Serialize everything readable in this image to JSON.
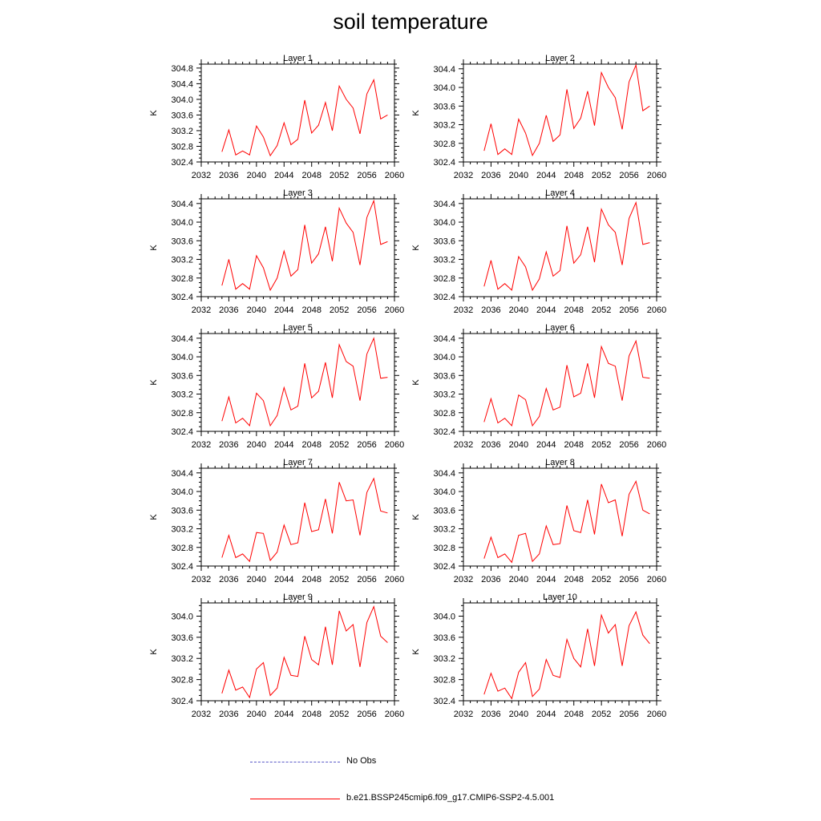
{
  "title": "soil temperature",
  "colors": {
    "model_line": "#ff0000",
    "obs_line": "#5a5ac8",
    "axis": "#000000"
  },
  "legend": [
    {
      "label": "No Obs",
      "color": "#5a5ac8",
      "style": "dashed"
    },
    {
      "label": "b.e21.BSSP245cmip6.f09_g17.CMIP6-SSP2-4.5.001",
      "color": "#ff0000",
      "style": "solid"
    }
  ],
  "chart_data": [
    {
      "type": "line",
      "title": "Layer 1",
      "ylabel": "K",
      "xlim": [
        2032,
        2060
      ],
      "ylim": [
        302.4,
        304.9
      ],
      "x_ticks": [
        2032,
        2036,
        2040,
        2044,
        2048,
        2052,
        2056,
        2060
      ],
      "y_ticks": [
        "302.4",
        "302.8",
        "303.2",
        "303.6",
        "304.0",
        "304.4",
        "304.8"
      ],
      "x": [
        2035,
        2036,
        2037,
        2038,
        2039,
        2040,
        2041,
        2042,
        2043,
        2044,
        2045,
        2046,
        2047,
        2048,
        2049,
        2050,
        2051,
        2052,
        2053,
        2054,
        2055,
        2056,
        2057,
        2058,
        2059
      ],
      "series": [
        {
          "name": "b.e21.BSSP245cmip6.f09_g17.CMIP6-SSP2-4.5.001",
          "values": [
            302.66,
            303.22,
            302.58,
            302.68,
            302.58,
            303.32,
            303.04,
            302.56,
            302.82,
            303.4,
            302.84,
            302.98,
            303.98,
            303.14,
            303.34,
            303.92,
            303.2,
            304.34,
            304.0,
            303.78,
            303.12,
            304.14,
            304.5,
            303.5,
            303.6
          ]
        }
      ]
    },
    {
      "type": "line",
      "title": "Layer 2",
      "ylabel": "K",
      "xlim": [
        2032,
        2060
      ],
      "ylim": [
        302.4,
        304.5
      ],
      "x_ticks": [
        2032,
        2036,
        2040,
        2044,
        2048,
        2052,
        2056,
        2060
      ],
      "y_ticks": [
        "302.4",
        "302.8",
        "303.2",
        "303.6",
        "304.0",
        "304.4"
      ],
      "x": [
        2035,
        2036,
        2037,
        2038,
        2039,
        2040,
        2041,
        2042,
        2043,
        2044,
        2045,
        2046,
        2047,
        2048,
        2049,
        2050,
        2051,
        2052,
        2053,
        2054,
        2055,
        2056,
        2057,
        2058,
        2059
      ],
      "series": [
        {
          "name": "b.e21.BSSP245cmip6.f09_g17.CMIP6-SSP2-4.5.001",
          "values": [
            302.64,
            303.22,
            302.56,
            302.68,
            302.56,
            303.32,
            303.02,
            302.54,
            302.8,
            303.4,
            302.84,
            302.98,
            303.96,
            303.12,
            303.34,
            303.92,
            303.18,
            304.32,
            304.0,
            303.78,
            303.1,
            304.12,
            304.48,
            303.5,
            303.6
          ]
        }
      ]
    },
    {
      "type": "line",
      "title": "Layer 3",
      "ylabel": "K",
      "xlim": [
        2032,
        2060
      ],
      "ylim": [
        302.4,
        304.5
      ],
      "x_ticks": [
        2032,
        2036,
        2040,
        2044,
        2048,
        2052,
        2056,
        2060
      ],
      "y_ticks": [
        "302.4",
        "302.8",
        "303.2",
        "303.6",
        "304.0",
        "304.4"
      ],
      "x": [
        2035,
        2036,
        2037,
        2038,
        2039,
        2040,
        2041,
        2042,
        2043,
        2044,
        2045,
        2046,
        2047,
        2048,
        2049,
        2050,
        2051,
        2052,
        2053,
        2054,
        2055,
        2056,
        2057,
        2058,
        2059
      ],
      "series": [
        {
          "name": "b.e21.BSSP245cmip6.f09_g17.CMIP6-SSP2-4.5.001",
          "values": [
            302.64,
            303.2,
            302.56,
            302.68,
            302.56,
            303.28,
            303.02,
            302.54,
            302.8,
            303.38,
            302.84,
            302.98,
            303.94,
            303.12,
            303.32,
            303.9,
            303.16,
            304.3,
            303.98,
            303.78,
            303.08,
            304.1,
            304.46,
            303.52,
            303.58
          ]
        }
      ]
    },
    {
      "type": "line",
      "title": "Layer 4",
      "ylabel": "K",
      "xlim": [
        2032,
        2060
      ],
      "ylim": [
        302.4,
        304.5
      ],
      "x_ticks": [
        2032,
        2036,
        2040,
        2044,
        2048,
        2052,
        2056,
        2060
      ],
      "y_ticks": [
        "302.4",
        "302.8",
        "303.2",
        "303.6",
        "304.0",
        "304.4"
      ],
      "x": [
        2035,
        2036,
        2037,
        2038,
        2039,
        2040,
        2041,
        2042,
        2043,
        2044,
        2045,
        2046,
        2047,
        2048,
        2049,
        2050,
        2051,
        2052,
        2053,
        2054,
        2055,
        2056,
        2057,
        2058,
        2059
      ],
      "series": [
        {
          "name": "b.e21.BSSP245cmip6.f09_g17.CMIP6-SSP2-4.5.001",
          "values": [
            302.62,
            303.18,
            302.56,
            302.68,
            302.54,
            303.26,
            303.04,
            302.54,
            302.78,
            303.36,
            302.84,
            302.96,
            303.92,
            303.12,
            303.3,
            303.9,
            303.14,
            304.28,
            303.94,
            303.78,
            303.08,
            304.08,
            304.42,
            303.52,
            303.56
          ]
        }
      ]
    },
    {
      "type": "line",
      "title": "Layer 5",
      "ylabel": "K",
      "xlim": [
        2032,
        2060
      ],
      "ylim": [
        302.4,
        304.5
      ],
      "x_ticks": [
        2032,
        2036,
        2040,
        2044,
        2048,
        2052,
        2056,
        2060
      ],
      "y_ticks": [
        "302.4",
        "302.8",
        "303.2",
        "303.6",
        "304.0",
        "304.4"
      ],
      "x": [
        2035,
        2036,
        2037,
        2038,
        2039,
        2040,
        2041,
        2042,
        2043,
        2044,
        2045,
        2046,
        2047,
        2048,
        2049,
        2050,
        2051,
        2052,
        2053,
        2054,
        2055,
        2056,
        2057,
        2058,
        2059
      ],
      "series": [
        {
          "name": "b.e21.BSSP245cmip6.f09_g17.CMIP6-SSP2-4.5.001",
          "values": [
            302.62,
            303.14,
            302.58,
            302.68,
            302.52,
            303.22,
            303.06,
            302.52,
            302.74,
            303.34,
            302.86,
            302.94,
            303.86,
            303.12,
            303.26,
            303.88,
            303.12,
            304.26,
            303.9,
            303.8,
            303.06,
            304.06,
            304.4,
            303.54,
            303.56
          ]
        }
      ]
    },
    {
      "type": "line",
      "title": "Layer 6",
      "ylabel": "K",
      "xlim": [
        2032,
        2060
      ],
      "ylim": [
        302.4,
        304.5
      ],
      "x_ticks": [
        2032,
        2036,
        2040,
        2044,
        2048,
        2052,
        2056,
        2060
      ],
      "y_ticks": [
        "302.4",
        "302.8",
        "303.2",
        "303.6",
        "304.0",
        "304.4"
      ],
      "x": [
        2035,
        2036,
        2037,
        2038,
        2039,
        2040,
        2041,
        2042,
        2043,
        2044,
        2045,
        2046,
        2047,
        2048,
        2049,
        2050,
        2051,
        2052,
        2053,
        2054,
        2055,
        2056,
        2057,
        2058,
        2059
      ],
      "series": [
        {
          "name": "b.e21.BSSP245cmip6.f09_g17.CMIP6-SSP2-4.5.001",
          "values": [
            302.6,
            303.1,
            302.58,
            302.68,
            302.52,
            303.18,
            303.08,
            302.52,
            302.72,
            303.32,
            302.86,
            302.92,
            303.82,
            303.14,
            303.22,
            303.86,
            303.12,
            304.22,
            303.86,
            303.8,
            303.06,
            304.02,
            304.34,
            303.56,
            303.54
          ]
        }
      ]
    },
    {
      "type": "line",
      "title": "Layer 7",
      "ylabel": "K",
      "xlim": [
        2032,
        2060
      ],
      "ylim": [
        302.4,
        304.5
      ],
      "x_ticks": [
        2032,
        2036,
        2040,
        2044,
        2048,
        2052,
        2056,
        2060
      ],
      "y_ticks": [
        "302.4",
        "302.8",
        "303.2",
        "303.6",
        "304.0",
        "304.4"
      ],
      "x": [
        2035,
        2036,
        2037,
        2038,
        2039,
        2040,
        2041,
        2042,
        2043,
        2044,
        2045,
        2046,
        2047,
        2048,
        2049,
        2050,
        2051,
        2052,
        2053,
        2054,
        2055,
        2056,
        2057,
        2058,
        2059
      ],
      "series": [
        {
          "name": "b.e21.BSSP245cmip6.f09_g17.CMIP6-SSP2-4.5.001",
          "values": [
            302.58,
            303.06,
            302.58,
            302.66,
            302.5,
            303.12,
            303.1,
            302.52,
            302.7,
            303.28,
            302.86,
            302.9,
            303.76,
            303.14,
            303.18,
            303.84,
            303.1,
            304.2,
            303.8,
            303.82,
            303.06,
            303.98,
            304.28,
            303.58,
            303.54
          ]
        }
      ]
    },
    {
      "type": "line",
      "title": "Layer 8",
      "ylabel": "K",
      "xlim": [
        2032,
        2060
      ],
      "ylim": [
        302.4,
        304.5
      ],
      "x_ticks": [
        2032,
        2036,
        2040,
        2044,
        2048,
        2052,
        2056,
        2060
      ],
      "y_ticks": [
        "302.4",
        "302.8",
        "303.2",
        "303.6",
        "304.0",
        "304.4"
      ],
      "x": [
        2035,
        2036,
        2037,
        2038,
        2039,
        2040,
        2041,
        2042,
        2043,
        2044,
        2045,
        2046,
        2047,
        2048,
        2049,
        2050,
        2051,
        2052,
        2053,
        2054,
        2055,
        2056,
        2057,
        2058,
        2059
      ],
      "series": [
        {
          "name": "b.e21.BSSP245cmip6.f09_g17.CMIP6-SSP2-4.5.001",
          "values": [
            302.56,
            303.02,
            302.58,
            302.66,
            302.48,
            303.06,
            303.1,
            302.5,
            302.66,
            303.26,
            302.86,
            302.88,
            303.7,
            303.16,
            303.12,
            303.82,
            303.08,
            304.16,
            303.76,
            303.82,
            303.04,
            303.94,
            304.22,
            303.6,
            303.52
          ]
        }
      ]
    },
    {
      "type": "line",
      "title": "Layer 9",
      "ylabel": "K",
      "xlim": [
        2032,
        2060
      ],
      "ylim": [
        302.4,
        304.25
      ],
      "x_ticks": [
        2032,
        2036,
        2040,
        2044,
        2048,
        2052,
        2056,
        2060
      ],
      "y_ticks": [
        "302.4",
        "302.8",
        "303.2",
        "303.6",
        "304.0"
      ],
      "x": [
        2035,
        2036,
        2037,
        2038,
        2039,
        2040,
        2041,
        2042,
        2043,
        2044,
        2045,
        2046,
        2047,
        2048,
        2049,
        2050,
        2051,
        2052,
        2053,
        2054,
        2055,
        2056,
        2057,
        2058,
        2059
      ],
      "series": [
        {
          "name": "b.e21.BSSP245cmip6.f09_g17.CMIP6-SSP2-4.5.001",
          "values": [
            302.54,
            302.98,
            302.6,
            302.66,
            302.46,
            303.0,
            303.12,
            302.5,
            302.64,
            303.22,
            302.88,
            302.86,
            303.62,
            303.18,
            303.08,
            303.8,
            303.08,
            304.1,
            303.72,
            303.84,
            303.04,
            303.88,
            304.18,
            303.62,
            303.5
          ]
        }
      ]
    },
    {
      "type": "line",
      "title": "Layer 10",
      "ylabel": "K",
      "xlim": [
        2032,
        2060
      ],
      "ylim": [
        302.4,
        304.25
      ],
      "x_ticks": [
        2032,
        2036,
        2040,
        2044,
        2048,
        2052,
        2056,
        2060
      ],
      "y_ticks": [
        "302.4",
        "302.8",
        "303.2",
        "303.6",
        "304.0"
      ],
      "x": [
        2035,
        2036,
        2037,
        2038,
        2039,
        2040,
        2041,
        2042,
        2043,
        2044,
        2045,
        2046,
        2047,
        2048,
        2049,
        2050,
        2051,
        2052,
        2053,
        2054,
        2055,
        2056,
        2057,
        2058,
        2059
      ],
      "series": [
        {
          "name": "b.e21.BSSP245cmip6.f09_g17.CMIP6-SSP2-4.5.001",
          "values": [
            302.52,
            302.92,
            302.58,
            302.64,
            302.44,
            302.94,
            303.12,
            302.48,
            302.62,
            303.18,
            302.88,
            302.84,
            303.56,
            303.2,
            303.04,
            303.76,
            303.06,
            304.02,
            303.68,
            303.84,
            303.06,
            303.82,
            304.08,
            303.64,
            303.48
          ]
        }
      ]
    }
  ]
}
